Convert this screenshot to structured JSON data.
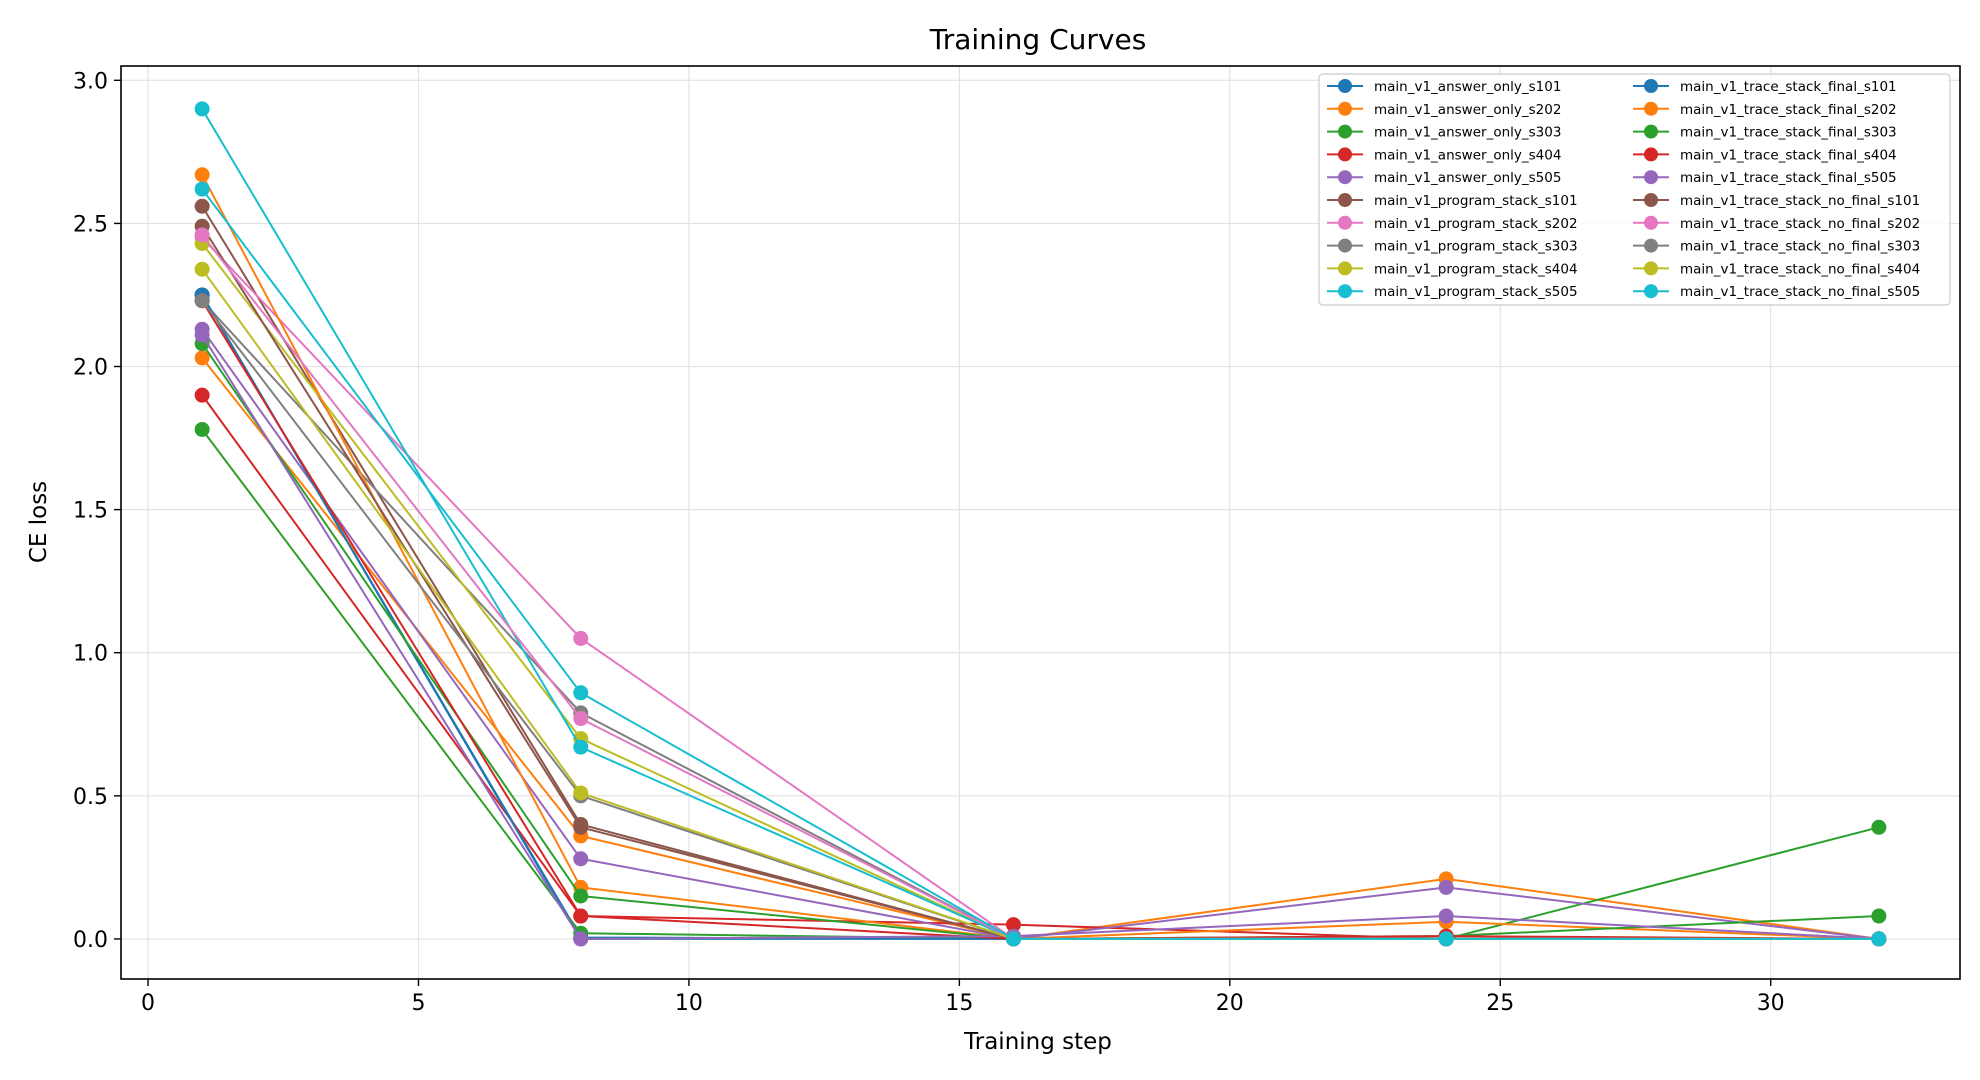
{
  "chart_data": {
    "type": "line",
    "title": "Training Curves",
    "xlabel": "Training step",
    "ylabel": "CE loss",
    "xlim": [
      -0.5,
      33.5
    ],
    "ylim": [
      -0.14,
      3.05
    ],
    "xticks": [
      0,
      5,
      10,
      15,
      20,
      25,
      30
    ],
    "yticks": [
      0.0,
      0.5,
      1.0,
      1.5,
      2.0,
      2.5,
      3.0
    ],
    "ytick_labels": [
      "0.0",
      "0.5",
      "1.0",
      "1.5",
      "2.0",
      "2.5",
      "3.0"
    ],
    "grid": true,
    "legend_position": "top-right",
    "legend_columns": 2,
    "x": [
      1,
      8,
      16,
      24,
      32
    ],
    "series": [
      {
        "name": "main_v1_answer_only_s101",
        "color": "#1f77b4",
        "values": [
          2.25,
          0.005,
          0.0,
          0.0,
          0.0
        ]
      },
      {
        "name": "main_v1_answer_only_s202",
        "color": "#ff7f0e",
        "values": [
          2.03,
          0.36,
          0.0,
          0.21,
          0.0
        ]
      },
      {
        "name": "main_v1_answer_only_s303",
        "color": "#2ca02c",
        "values": [
          1.78,
          0.02,
          0.0,
          0.0,
          0.39
        ]
      },
      {
        "name": "main_v1_answer_only_s404",
        "color": "#d62728",
        "values": [
          1.9,
          0.08,
          0.05,
          0.0,
          0.0
        ]
      },
      {
        "name": "main_v1_answer_only_s505",
        "color": "#9467bd",
        "values": [
          2.13,
          0.28,
          0.0,
          0.18,
          0.0
        ]
      },
      {
        "name": "main_v1_program_stack_s101",
        "color": "#8c564b",
        "values": [
          2.56,
          0.4,
          0.0,
          0.0,
          0.0
        ]
      },
      {
        "name": "main_v1_program_stack_s202",
        "color": "#e377c2",
        "values": [
          2.45,
          1.05,
          0.0,
          0.0,
          0.0
        ]
      },
      {
        "name": "main_v1_program_stack_s303",
        "color": "#7f7f7f",
        "values": [
          2.23,
          0.79,
          0.0,
          0.0,
          0.0
        ]
      },
      {
        "name": "main_v1_program_stack_s404",
        "color": "#bcbd22",
        "values": [
          2.43,
          0.7,
          0.0,
          0.0,
          0.0
        ]
      },
      {
        "name": "main_v1_program_stack_s505",
        "color": "#17becf",
        "values": [
          2.9,
          0.67,
          0.0,
          0.0,
          0.0
        ]
      },
      {
        "name": "main_v1_trace_stack_final_s101",
        "color": "#1f77b4",
        "values": [
          2.25,
          0.0,
          0.0,
          0.0,
          0.0
        ]
      },
      {
        "name": "main_v1_trace_stack_final_s202",
        "color": "#ff7f0e",
        "values": [
          2.67,
          0.18,
          0.0,
          0.06,
          0.0
        ]
      },
      {
        "name": "main_v1_trace_stack_final_s303",
        "color": "#2ca02c",
        "values": [
          2.08,
          0.15,
          0.0,
          0.01,
          0.08
        ]
      },
      {
        "name": "main_v1_trace_stack_final_s404",
        "color": "#d62728",
        "values": [
          2.23,
          0.08,
          0.0,
          0.01,
          0.0
        ]
      },
      {
        "name": "main_v1_trace_stack_final_s505",
        "color": "#9467bd",
        "values": [
          2.11,
          0.0,
          0.01,
          0.08,
          0.0
        ]
      },
      {
        "name": "main_v1_trace_stack_no_final_s101",
        "color": "#8c564b",
        "values": [
          2.49,
          0.39,
          0.0,
          0.0,
          0.0
        ]
      },
      {
        "name": "main_v1_trace_stack_no_final_s202",
        "color": "#e377c2",
        "values": [
          2.46,
          0.77,
          0.0,
          0.0,
          0.0
        ]
      },
      {
        "name": "main_v1_trace_stack_no_final_s303",
        "color": "#7f7f7f",
        "values": [
          2.23,
          0.5,
          0.0,
          0.0,
          0.0
        ]
      },
      {
        "name": "main_v1_trace_stack_no_final_s404",
        "color": "#bcbd22",
        "values": [
          2.34,
          0.51,
          0.0,
          0.0,
          0.0
        ]
      },
      {
        "name": "main_v1_trace_stack_no_final_s505",
        "color": "#17becf",
        "values": [
          2.62,
          0.86,
          0.0,
          0.0,
          0.0
        ]
      }
    ]
  }
}
